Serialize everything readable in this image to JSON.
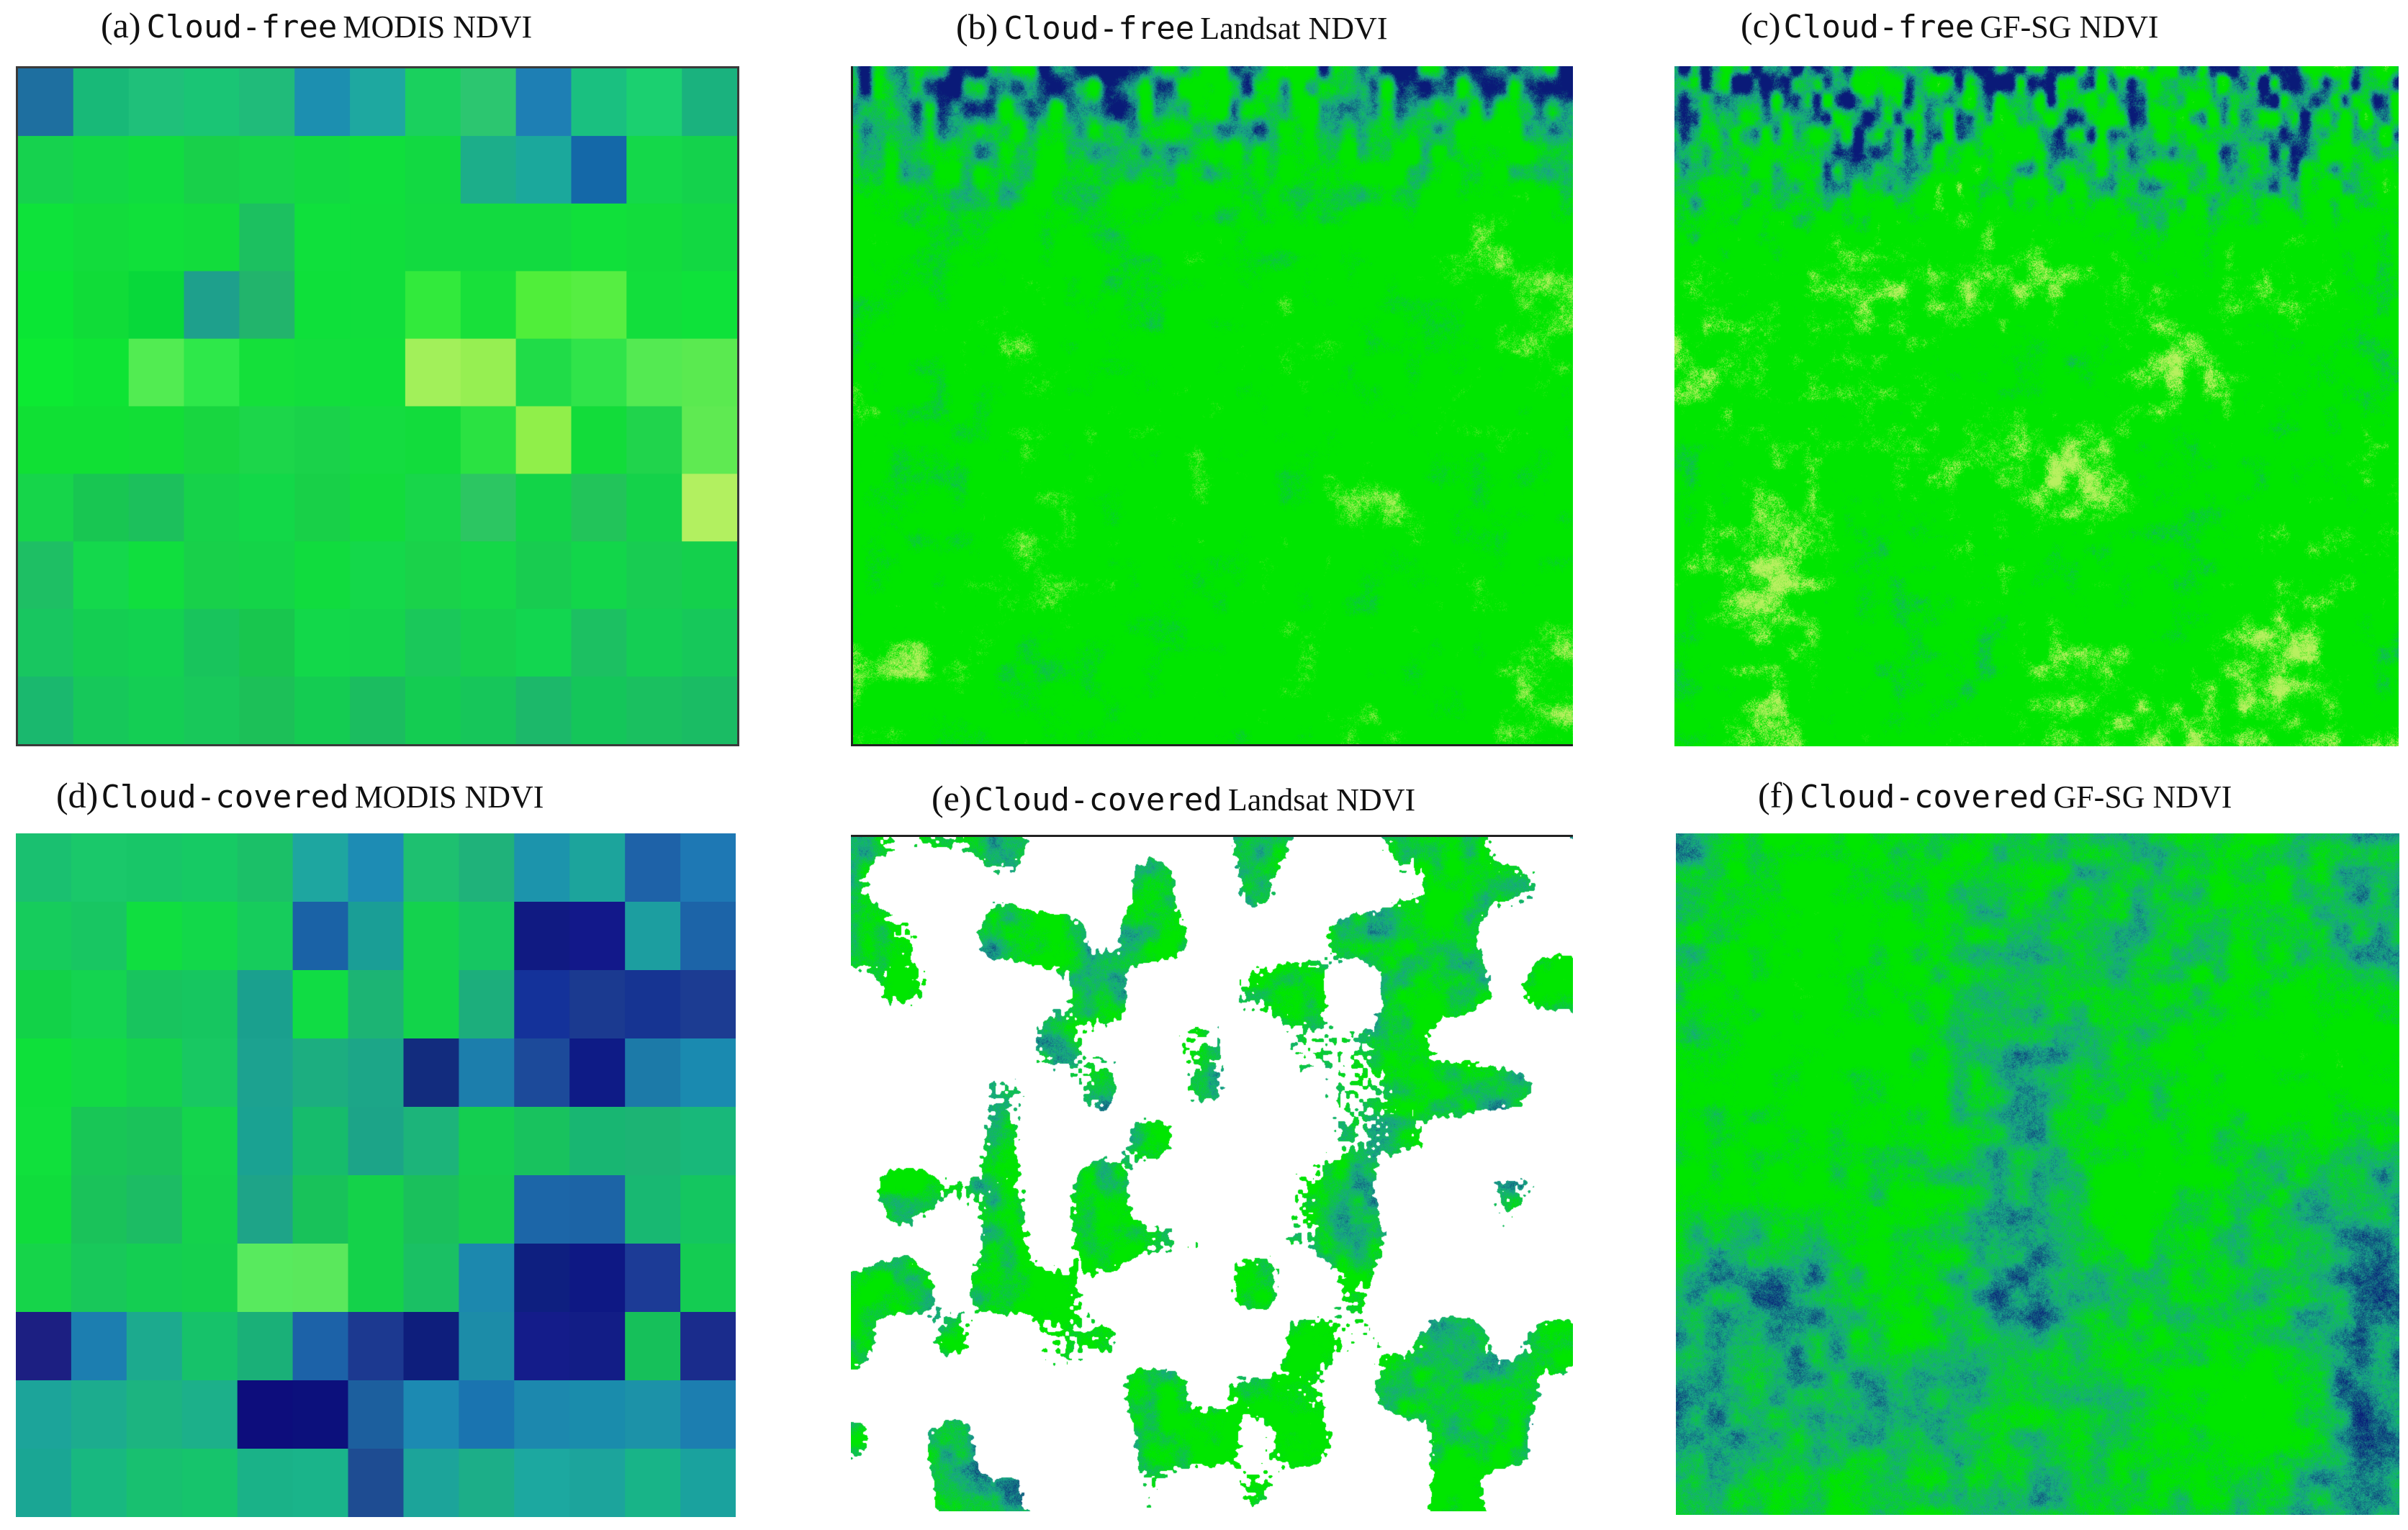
{
  "figure": {
    "panels": [
      {
        "id": "a",
        "label": "(a)",
        "prefix": "Cloud-free",
        "product": "MODIS NDVI"
      },
      {
        "id": "b",
        "label": "(b)",
        "prefix": "Cloud-free",
        "product": "Landsat NDVI"
      },
      {
        "id": "c",
        "label": "(c)",
        "prefix": "Cloud-free",
        "product": "GF-SG NDVI"
      },
      {
        "id": "d",
        "label": "(d)",
        "prefix": "Cloud-covered",
        "product": "MODIS NDVI"
      },
      {
        "id": "e",
        "label": "(e)",
        "prefix": "Cloud-covered",
        "product": "Landsat NDVI"
      },
      {
        "id": "f",
        "label": "(f)",
        "prefix": "Cloud-covered",
        "product": "GF-SG NDVI"
      }
    ],
    "colors": {
      "high_ndvi": "#00e600",
      "mid_ndvi": "#1aa58a",
      "low_ndvi": "#0a1a78",
      "very_high_ndvi": "#b8f060",
      "cloud_mask": "#ffffff"
    },
    "modis_grids": {
      "cloud_free": [
        [
          "#1e6fa0",
          "#18b978",
          "#1fc07a",
          "#1ac575",
          "#20bb7a",
          "#1c8fb0",
          "#1ea8a0",
          "#1ad05e",
          "#2cc670",
          "#1e7fb4",
          "#1ac080",
          "#1bd070",
          "#1ab27e"
        ],
        [
          "#16d24e",
          "#12d846",
          "#10dc40",
          "#18d04a",
          "#16d54a",
          "#12d942",
          "#0fdf3c",
          "#12d942",
          "#1cae8a",
          "#1ba89c",
          "#1468a8",
          "#14d84a",
          "#14d24c"
        ],
        [
          "#0ee23a",
          "#12dc3c",
          "#10e03a",
          "#12dc3c",
          "#1cc060",
          "#0fe03c",
          "#10de3c",
          "#12da40",
          "#12da40",
          "#12da40",
          "#10e03a",
          "#12dc3c",
          "#12d842"
        ],
        [
          "#0ae634",
          "#10dc38",
          "#08d83a",
          "#1ea08c",
          "#22b46c",
          "#0ee03a",
          "#10de3c",
          "#32ea3c",
          "#18e03a",
          "#50ee3a",
          "#56ee42",
          "#12de3c",
          "#0ee23a"
        ],
        [
          "#0cea32",
          "#0ee434",
          "#52ec52",
          "#2ee84a",
          "#14e03a",
          "#12de3c",
          "#0fe03a",
          "#a2f05a",
          "#96ef52",
          "#20dc48",
          "#30e44a",
          "#54ea52",
          "#5aea50"
        ],
        [
          "#10e034",
          "#10e034",
          "#12de36",
          "#18d640",
          "#1cd64a",
          "#1ad24a",
          "#14dc40",
          "#12dc3c",
          "#2ae242",
          "#90ef4a",
          "#12dc3a",
          "#20d44c",
          "#5fea52"
        ],
        [
          "#16d54a",
          "#18c652",
          "#1cc05c",
          "#16d24a",
          "#12d848",
          "#18d048",
          "#12dc3c",
          "#18d64a",
          "#2cc662",
          "#12d448",
          "#22c45a",
          "#14d24a",
          "#b2f060"
        ],
        [
          "#1ebf64",
          "#14d84c",
          "#10de3e",
          "#18d04a",
          "#14d448",
          "#10dc3e",
          "#14d84a",
          "#1ad24a",
          "#14d848",
          "#18cc50",
          "#12d64a",
          "#18cc52",
          "#14d04c"
        ],
        [
          "#18c660",
          "#14ce52",
          "#12d250",
          "#18c45c",
          "#18c64e",
          "#12d84a",
          "#14d44c",
          "#1ac85a",
          "#16d04e",
          "#12d650",
          "#1cc062",
          "#14ce54",
          "#16c85a"
        ],
        [
          "#1ab86e",
          "#16c85a",
          "#14ce54",
          "#18c85a",
          "#1cc058",
          "#14cc52",
          "#1bbd60",
          "#14cc52",
          "#16c65a",
          "#1cb86a",
          "#14c65a",
          "#1ac060",
          "#1abc64"
        ]
      ],
      "cloud_covered": [
        [
          "#1ac070",
          "#1ac86a",
          "#18c668",
          "#16ca64",
          "#1bc068",
          "#1ea6a0",
          "#1d8cb4",
          "#1ec070",
          "#1fb27a",
          "#1c94ac",
          "#1ca49c",
          "#1e62a8",
          "#1e78b4"
        ],
        [
          "#16cc5c",
          "#18c662",
          "#10de40",
          "#12d84a",
          "#16cc5c",
          "#1a62a6",
          "#1a9e96",
          "#14d24e",
          "#16c662",
          "#101a82",
          "#12188a",
          "#1c9ea0",
          "#1c64a8"
        ],
        [
          "#12d248",
          "#14d450",
          "#18c45e",
          "#16c660",
          "#1aa08e",
          "#10dc44",
          "#1cb474",
          "#12d44a",
          "#1cae7c",
          "#14329a",
          "#1b3a90",
          "#163492",
          "#1c3c92"
        ],
        [
          "#0ee03a",
          "#12da44",
          "#14d24c",
          "#18c862",
          "#1ca290",
          "#1cae80",
          "#1ca688",
          "#122c7e",
          "#1c7eac",
          "#1c4a9a",
          "#0e1b86",
          "#1c7aa8",
          "#1a8ab0"
        ],
        [
          "#10e03c",
          "#18c656",
          "#1ac25a",
          "#14d44c",
          "#1aa292",
          "#16bc6c",
          "#1ca488",
          "#1cb47a",
          "#14ce50",
          "#18c25e",
          "#18b672",
          "#1cb474",
          "#18b87a"
        ],
        [
          "#10dc3c",
          "#1ac25a",
          "#1cbc64",
          "#14d24c",
          "#1ea488",
          "#18c25a",
          "#14d24a",
          "#1ac05c",
          "#16cc4e",
          "#1c66a8",
          "#1c64a6",
          "#18b872",
          "#14c660"
        ],
        [
          "#16d44a",
          "#18c85a",
          "#14ce52",
          "#14d04e",
          "#58ea5e",
          "#5ae85c",
          "#14d24a",
          "#1ac064",
          "#1c88ae",
          "#0e1f80",
          "#0e1884",
          "#1c3b96",
          "#14cc52"
        ],
        [
          "#1c1f82",
          "#1c7eb0",
          "#1caa8e",
          "#16c26a",
          "#1ab078",
          "#1c62a8",
          "#1c3990",
          "#0e1e7c",
          "#1c8ca8",
          "#141c8a",
          "#121d86",
          "#16c05a",
          "#1a2c8c"
        ],
        [
          "#1ca49a",
          "#1cac8e",
          "#1cb480",
          "#1cb08a",
          "#0d0d7c",
          "#0c107c",
          "#1c5f9e",
          "#1c8ab2",
          "#1a74b0",
          "#1c88ae",
          "#1a8cac",
          "#1c92a8",
          "#1c7eb0"
        ],
        [
          "#1aa694",
          "#18b880",
          "#18c070",
          "#16c46c",
          "#1ab288",
          "#1ab48a",
          "#1e4c92",
          "#1ca49a",
          "#1cae88",
          "#1ca8a0",
          "#1ca49c",
          "#18b488",
          "#1aa29e"
        ]
      ]
    }
  }
}
